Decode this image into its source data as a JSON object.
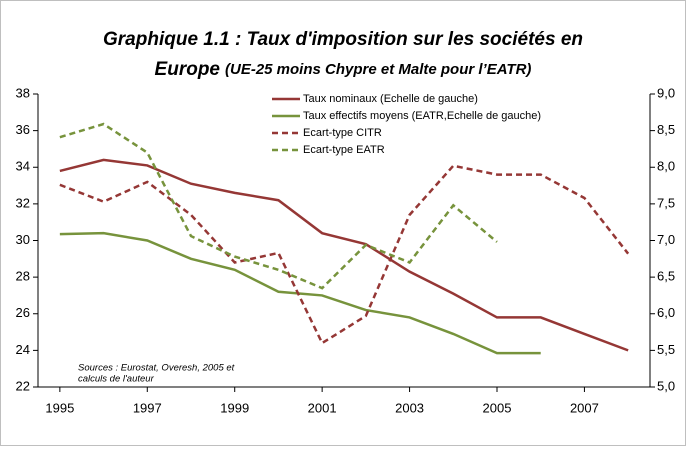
{
  "chart_data": {
    "type": "line",
    "title_lines": [
      "Graphique 1.1 : Taux d'imposition sur les sociétés en",
      "Europe"
    ],
    "subtitle": "(UE-25 moins Chypre et Malte pour l’EATR)",
    "annotation_lines": [
      "Sources : Eurostat, Overesh, 2005 et",
      "calculs de l'auteur"
    ],
    "x": [
      1995,
      1996,
      1997,
      1998,
      1999,
      2000,
      2001,
      2002,
      2003,
      2004,
      2005,
      2006,
      2007,
      2008
    ],
    "xlim": [
      1994.5,
      2008.5
    ],
    "xticks": [
      1995,
      1997,
      1999,
      2001,
      2003,
      2005,
      2007
    ],
    "ylim": [
      22,
      38
    ],
    "yticks": [
      22,
      24,
      26,
      28,
      30,
      32,
      34,
      36,
      38
    ],
    "y2lim": [
      5,
      9
    ],
    "y2ticks": [
      {
        "value": 5,
        "label": "5,0"
      },
      {
        "value": 5.5,
        "label": "5,5"
      },
      {
        "value": 6,
        "label": "6,0"
      },
      {
        "value": 6.5,
        "label": "6,5"
      },
      {
        "value": 7,
        "label": "7,0"
      },
      {
        "value": 7.5,
        "label": "7,5"
      },
      {
        "value": 8,
        "label": "8,0"
      },
      {
        "value": 8.5,
        "label": "8,5"
      },
      {
        "value": 9,
        "label": "9,0"
      }
    ],
    "legend": "top-center",
    "series": [
      {
        "name": "Taux nominaux (Echelle de gauche)",
        "color": "#953735",
        "dash": false,
        "values": [
          33.8,
          34.4,
          34.1,
          33.1,
          32.6,
          32.2,
          30.4,
          29.8,
          28.3,
          27.1,
          25.8,
          25.8,
          24.9,
          24.0
        ]
      },
      {
        "name": "Taux effectifs moyens (EATR,Echelle de gauche)",
        "color": "#77933c",
        "dash": false,
        "values": [
          30.35,
          30.4,
          30.0,
          29.0,
          28.4,
          27.2,
          27.0,
          26.2,
          25.8,
          24.9,
          23.85,
          23.85,
          null,
          null
        ]
      },
      {
        "name": "Ecart-type CITR",
        "color": "#953735",
        "dash": true,
        "axis": "y2",
        "values": [
          7.76,
          7.53,
          7.8,
          7.35,
          6.7,
          6.83,
          5.6,
          5.97,
          7.35,
          8.02,
          7.9,
          7.9,
          7.58,
          6.82
        ]
      },
      {
        "name": "Ecart-type EATR",
        "color": "#77933c",
        "dash": true,
        "axis": "y2",
        "values": [
          8.41,
          8.59,
          8.2,
          7.06,
          6.78,
          6.6,
          6.35,
          6.94,
          6.7,
          7.48,
          6.98,
          null,
          null,
          null
        ]
      }
    ]
  }
}
